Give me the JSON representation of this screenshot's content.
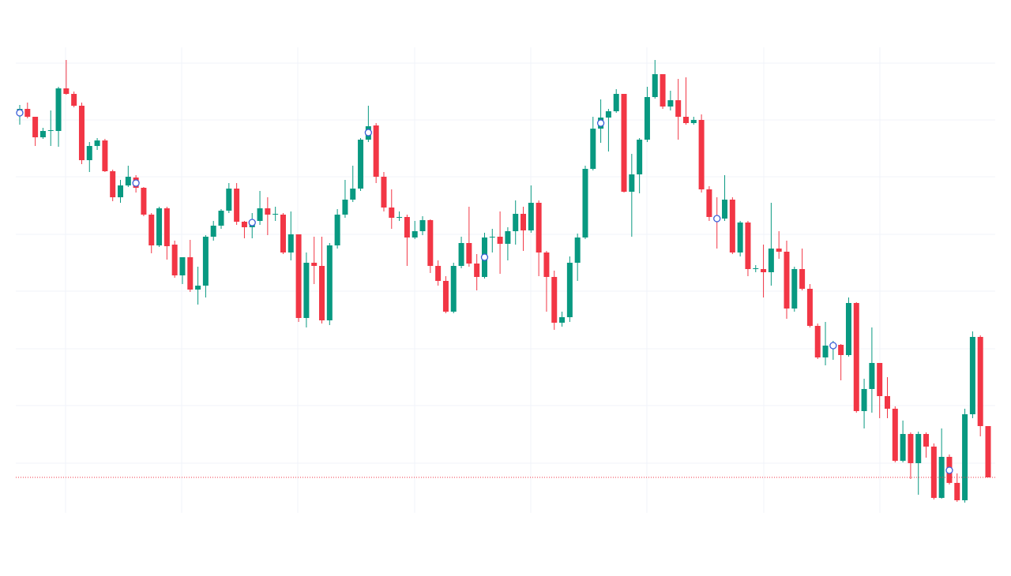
{
  "chart_data": {
    "type": "candlestick",
    "open": [
      505,
      512,
      502,
      476,
      484,
      484,
      538,
      531,
      516,
      447,
      465,
      472,
      433,
      400,
      415,
      425,
      412,
      378,
      339,
      386,
      340,
      301,
      324,
      283,
      288,
      350,
      364,
      383,
      411,
      369,
      362,
      370,
      386,
      378,
      378,
      330,
      353,
      247,
      317,
      313,
      244,
      339,
      378,
      397,
      411,
      473,
      491,
      426,
      387,
      374,
      375,
      349,
      357,
      371,
      313,
      294,
      255,
      313,
      342,
      316,
      299,
      349,
      350,
      341,
      357,
      379,
      358,
      393,
      330,
      299,
      241,
      248,
      317,
      349,
      436,
      487,
      501,
      509,
      531,
      407,
      429,
      473,
      527,
      556,
      515,
      523,
      502,
      494,
      498,
      410,
      375,
      373,
      397,
      330,
      368,
      309,
      309,
      305,
      335,
      331,
      259,
      309,
      284,
      237,
      197,
      209,
      213,
      200,
      266,
      129,
      157,
      190,
      148,
      132,
      66,
      100,
      63,
      100,
      84,
      19,
      71,
      38,
      16,
      125,
      223,
      110
    ],
    "high": [
      517,
      520,
      502,
      488,
      510,
      540,
      574,
      534,
      520,
      470,
      475,
      474,
      435,
      422,
      440,
      428,
      413,
      380,
      388,
      388,
      345,
      324,
      346,
      312,
      352,
      370,
      385,
      418,
      418,
      370,
      380,
      408,
      400,
      388,
      380,
      382,
      353,
      330,
      350,
      350,
      342,
      385,
      422,
      440,
      475,
      516,
      494,
      432,
      410,
      382,
      378,
      370,
      376,
      372,
      320,
      300,
      317,
      350,
      388,
      328,
      355,
      360,
      382,
      362,
      396,
      388,
      415,
      396,
      332,
      307,
      255,
      325,
      354,
      440,
      502,
      524,
      512,
      537,
      531,
      455,
      475,
      540,
      574,
      556,
      535,
      550,
      552,
      502,
      505,
      414,
      400,
      428,
      400,
      370,
      370,
      314,
      340,
      393,
      357,
      345,
      312,
      335,
      290,
      240,
      242,
      218,
      214,
      273,
      267,
      170,
      235,
      190,
      172,
      135,
      117,
      102,
      103,
      102,
      88,
      107,
      74,
      50,
      132,
      230,
      225,
      110
    ],
    "low": [
      492,
      500,
      465,
      474,
      465,
      464,
      530,
      514,
      442,
      432,
      460,
      432,
      395,
      393,
      413,
      406,
      376,
      329,
      337,
      321,
      298,
      290,
      280,
      264,
      273,
      345,
      360,
      380,
      365,
      348,
      348,
      365,
      352,
      370,
      328,
      320,
      242,
      235,
      290,
      240,
      238,
      335,
      374,
      394,
      408,
      470,
      418,
      382,
      360,
      370,
      313,
      347,
      352,
      304,
      288,
      253,
      253,
      310,
      312,
      282,
      297,
      330,
      303,
      320,
      340,
      332,
      355,
      300,
      255,
      232,
      236,
      242,
      294,
      347,
      434,
      469,
      458,
      507,
      406,
      350,
      405,
      470,
      525,
      512,
      510,
      473,
      492,
      492,
      406,
      370,
      335,
      370,
      328,
      325,
      300,
      305,
      273,
      288,
      322,
      246,
      255,
      282,
      235,
      195,
      187,
      194,
      168,
      198,
      127,
      107,
      127,
      120,
      120,
      64,
      64,
      43,
      23,
      70,
      17,
      18,
      36,
      14,
      13,
      120,
      97,
      45
    ],
    "close": [
      512,
      502,
      476,
      484,
      485,
      538,
      531,
      516,
      447,
      465,
      472,
      433,
      400,
      415,
      426,
      412,
      378,
      339,
      386,
      338,
      301,
      324,
      283,
      288,
      350,
      364,
      383,
      411,
      369,
      362,
      370,
      386,
      378,
      379,
      330,
      353,
      247,
      317,
      313,
      244,
      339,
      378,
      397,
      411,
      473,
      490,
      426,
      387,
      374,
      375,
      349,
      357,
      371,
      313,
      294,
      255,
      313,
      342,
      316,
      299,
      349,
      350,
      341,
      357,
      379,
      358,
      393,
      330,
      299,
      241,
      248,
      317,
      349,
      436,
      487,
      501,
      509,
      531,
      407,
      429,
      473,
      527,
      556,
      515,
      523,
      502,
      494,
      498,
      410,
      375,
      373,
      397,
      330,
      368,
      309,
      310,
      305,
      335,
      331,
      259,
      309,
      284,
      237,
      197,
      212,
      213,
      200,
      266,
      129,
      157,
      190,
      148,
      132,
      66,
      100,
      63,
      100,
      84,
      19,
      71,
      38,
      16,
      125,
      223,
      110,
      45
    ],
    "markers": [
      {
        "index": 0,
        "value": 507
      },
      {
        "index": 15,
        "value": 418
      },
      {
        "index": 30,
        "value": 368
      },
      {
        "index": 45,
        "value": 482
      },
      {
        "index": 60,
        "value": 324
      },
      {
        "index": 75,
        "value": 494
      },
      {
        "index": 90,
        "value": 373
      },
      {
        "index": 105,
        "value": 212
      },
      {
        "index": 120,
        "value": 54
      }
    ],
    "last_price": 45,
    "up_color": "#089981",
    "down_color": "#f23645",
    "marker_color": "#3d5fd9",
    "last_price_color": "#f23645",
    "ylim": [
      0,
      590
    ],
    "yticks": [
      63,
      136,
      208,
      281,
      353,
      426,
      498,
      570
    ],
    "grid": true
  }
}
